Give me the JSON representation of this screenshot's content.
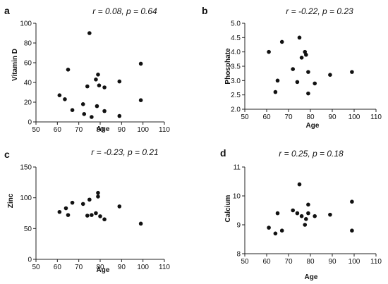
{
  "figure": {
    "colors": {
      "axis": "#222222",
      "point": "#111111",
      "background": "#ffffff"
    },
    "panels": [
      {
        "label": "a",
        "stat": "r = 0.08, p = 0.64",
        "xlabel": "Age",
        "ylabel": "Vitamin D"
      },
      {
        "label": "b",
        "stat": "r = -0.22, p = 0.23",
        "xlabel": "Age",
        "ylabel": "Phosphate"
      },
      {
        "label": "c",
        "stat": "r = -0.23, p = 0.21",
        "xlabel": "Age",
        "ylabel": "Zinc"
      },
      {
        "label": "d",
        "stat": "r = 0.25, p = 0.18",
        "xlabel": "Age",
        "ylabel": "Calcium"
      }
    ]
  },
  "chart_data": [
    {
      "type": "scatter",
      "title": "",
      "xlabel": "Age",
      "ylabel": "Vitamin D",
      "annotation": "r = 0.08, p = 0.64",
      "xlim": [
        50,
        110
      ],
      "ylim": [
        0,
        100
      ],
      "xticks": [
        "50",
        "60",
        "70",
        "80",
        "90",
        "100",
        "110"
      ],
      "yticks": [
        "0",
        "20",
        "40",
        "60",
        "80",
        "100"
      ],
      "points": [
        [
          61,
          27
        ],
        [
          63.5,
          23
        ],
        [
          65,
          53
        ],
        [
          67,
          12
        ],
        [
          72,
          18
        ],
        [
          72.5,
          8
        ],
        [
          74,
          36
        ],
        [
          75,
          90
        ],
        [
          76,
          5
        ],
        [
          78,
          43
        ],
        [
          78.5,
          16
        ],
        [
          79,
          48
        ],
        [
          79.5,
          37
        ],
        [
          82,
          35
        ],
        [
          82,
          11
        ],
        [
          89,
          41
        ],
        [
          89,
          6
        ],
        [
          99,
          59
        ],
        [
          99,
          22
        ]
      ],
      "grid": false,
      "legend": "none"
    },
    {
      "type": "scatter",
      "title": "",
      "xlabel": "Age",
      "ylabel": "Phosphate",
      "annotation": "r = -0.22, p = 0.23",
      "xlim": [
        50,
        110
      ],
      "ylim": [
        2.0,
        5.0
      ],
      "xticks": [
        "50",
        "60",
        "70",
        "80",
        "90",
        "100",
        "110"
      ],
      "yticks": [
        "2.0",
        "2.5",
        "3.0",
        "3.5",
        "4.0",
        "4.5",
        "5.0"
      ],
      "points": [
        [
          61,
          4.0
        ],
        [
          64,
          2.6
        ],
        [
          65,
          3.0
        ],
        [
          67,
          4.35
        ],
        [
          72,
          3.4
        ],
        [
          74,
          2.95
        ],
        [
          75,
          4.5
        ],
        [
          76,
          3.8
        ],
        [
          77.5,
          4.0
        ],
        [
          78,
          3.9
        ],
        [
          79,
          3.3
        ],
        [
          79,
          2.55
        ],
        [
          82,
          2.9
        ],
        [
          89,
          3.2
        ],
        [
          99,
          3.3
        ]
      ],
      "grid": false,
      "legend": "none"
    },
    {
      "type": "scatter",
      "title": "",
      "xlabel": "Age",
      "ylabel": "Zinc",
      "annotation": "r = -0.23, p = 0.21",
      "xlim": [
        50,
        110
      ],
      "ylim": [
        0,
        150
      ],
      "xticks": [
        "50",
        "60",
        "70",
        "80",
        "90",
        "100",
        "110"
      ],
      "yticks": [
        "0",
        "50",
        "100",
        "150"
      ],
      "points": [
        [
          61,
          77
        ],
        [
          64,
          83
        ],
        [
          65,
          72
        ],
        [
          67,
          92
        ],
        [
          72,
          90
        ],
        [
          74,
          71
        ],
        [
          75,
          97
        ],
        [
          76,
          72
        ],
        [
          78,
          75
        ],
        [
          79,
          102
        ],
        [
          79,
          108
        ],
        [
          80,
          70
        ],
        [
          82,
          65
        ],
        [
          89,
          86
        ],
        [
          99,
          58
        ]
      ],
      "grid": false,
      "legend": "none"
    },
    {
      "type": "scatter",
      "title": "",
      "xlabel": "Age",
      "ylabel": "Calcium",
      "annotation": "r = 0.25, p = 0.18",
      "xlim": [
        50,
        110
      ],
      "ylim": [
        8,
        11
      ],
      "xticks": [
        "50",
        "60",
        "70",
        "80",
        "90",
        "100",
        "110"
      ],
      "yticks": [
        "8",
        "9",
        "10",
        "11"
      ],
      "points": [
        [
          61,
          8.9
        ],
        [
          64,
          8.7
        ],
        [
          65,
          9.4
        ],
        [
          67,
          8.8
        ],
        [
          72,
          9.5
        ],
        [
          74,
          9.4
        ],
        [
          75,
          10.4
        ],
        [
          76,
          9.3
        ],
        [
          77.5,
          9.0
        ],
        [
          78,
          9.2
        ],
        [
          79,
          9.7
        ],
        [
          79,
          9.4
        ],
        [
          82,
          9.3
        ],
        [
          89,
          9.35
        ],
        [
          99,
          9.8
        ],
        [
          99,
          8.8
        ]
      ],
      "grid": false,
      "legend": "none"
    }
  ]
}
